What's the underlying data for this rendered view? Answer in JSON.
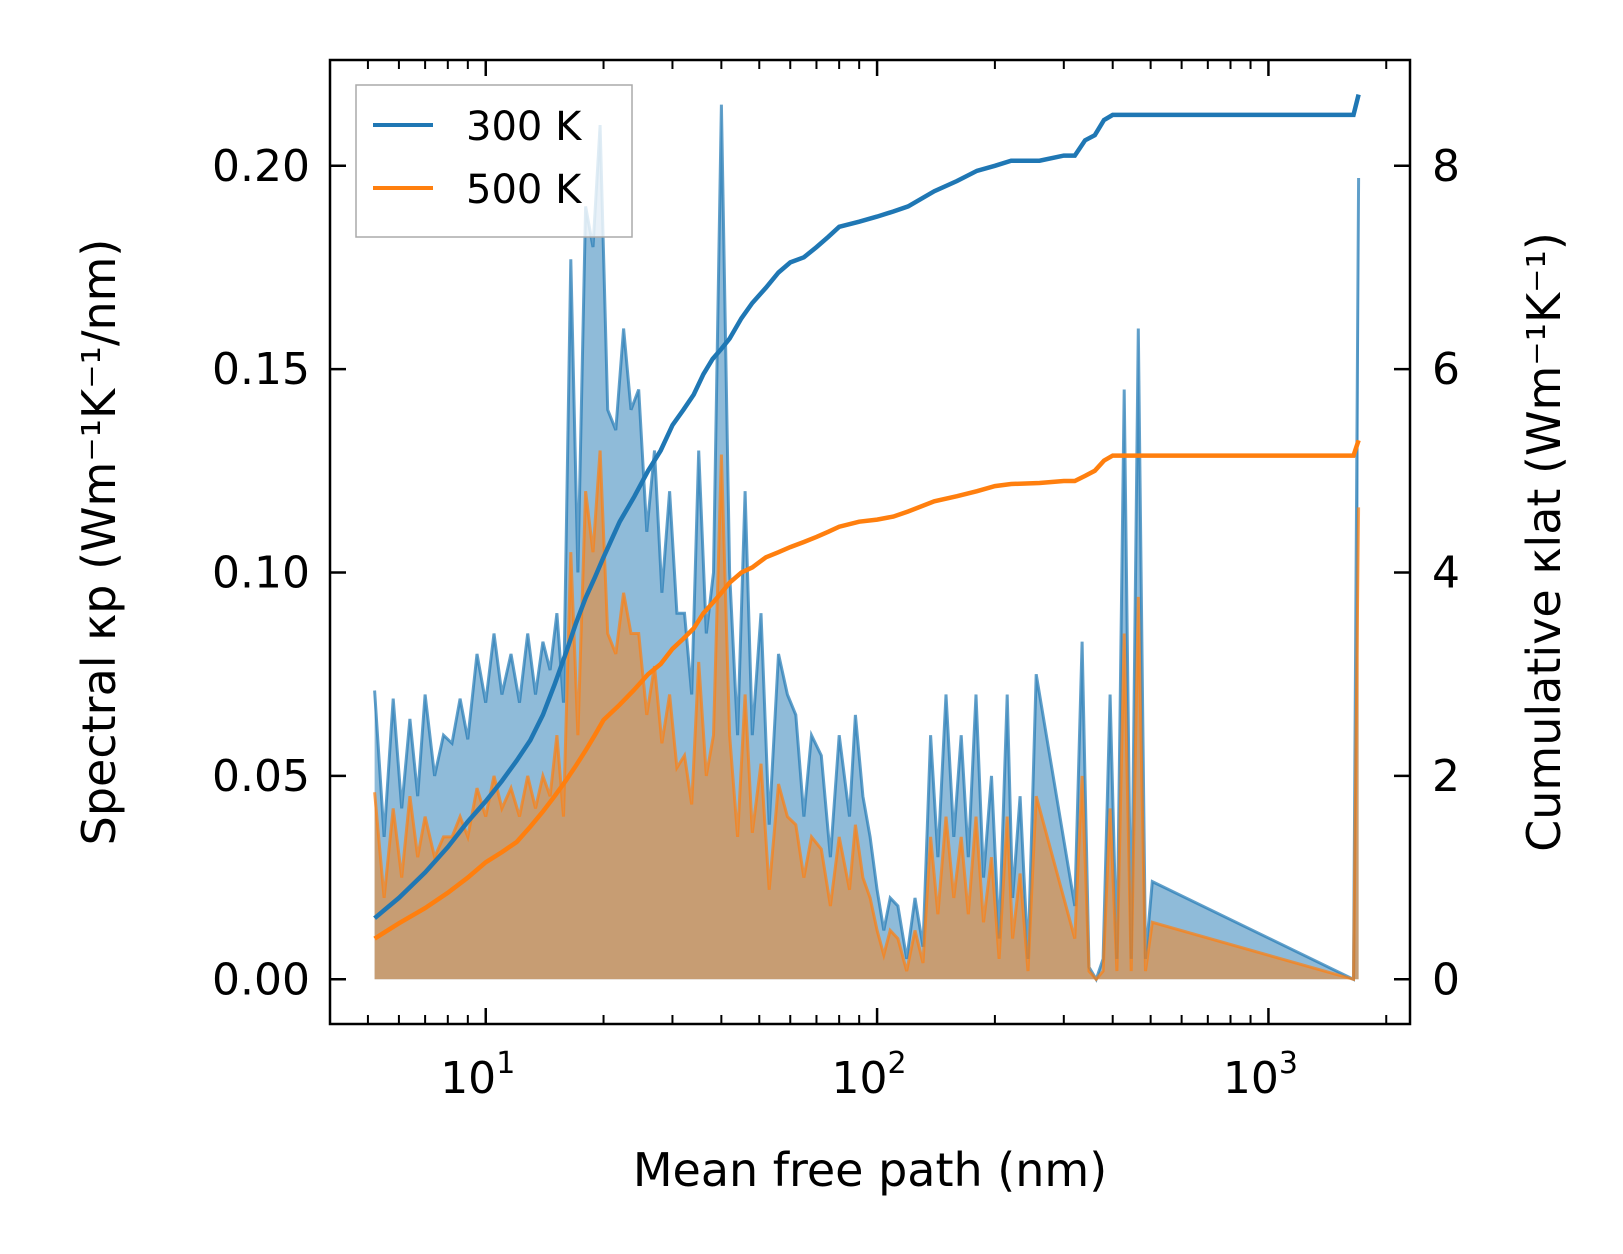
{
  "chart_data": {
    "type": "line",
    "title": "",
    "xlabel": "Mean free path (nm)",
    "ylabel": "Spectral κp (Wm⁻¹K⁻¹/nm)",
    "y2label": "Cumulative κlat (Wm⁻¹K⁻¹)",
    "xscale": "log",
    "xlim": [
      4,
      2300
    ],
    "ylim": [
      -0.011,
      0.226
    ],
    "y2lim": [
      -0.44,
      9.04
    ],
    "x_ticks": [
      {
        "value": 10,
        "base": "10",
        "exp": "1"
      },
      {
        "value": 100,
        "base": "10",
        "exp": "2"
      },
      {
        "value": 1000,
        "base": "10",
        "exp": "3"
      }
    ],
    "y_ticks": [
      {
        "value": 0.0,
        "label": "0.00"
      },
      {
        "value": 0.05,
        "label": "0.05"
      },
      {
        "value": 0.1,
        "label": "0.10"
      },
      {
        "value": 0.15,
        "label": "0.15"
      },
      {
        "value": 0.2,
        "label": "0.20"
      }
    ],
    "y2_ticks": [
      {
        "value": 0,
        "label": "0"
      },
      {
        "value": 2,
        "label": "2"
      },
      {
        "value": 4,
        "label": "4"
      },
      {
        "value": 6,
        "label": "6"
      },
      {
        "value": 8,
        "label": "8"
      }
    ],
    "legend": {
      "location": "upper-left",
      "entries": [
        {
          "label": "300 K",
          "color": "#1f77b4"
        },
        {
          "label": "500 K",
          "color": "#ff7f0e"
        }
      ]
    },
    "spectral_series": [
      {
        "name": "300 K",
        "color": "#1f77b4",
        "x": [
          5.2,
          5.5,
          5.8,
          6.1,
          6.4,
          6.7,
          7.0,
          7.4,
          7.8,
          8.2,
          8.6,
          9.0,
          9.5,
          10.0,
          10.5,
          11.0,
          11.6,
          12.2,
          12.8,
          13.4,
          14.0,
          14.6,
          15.2,
          15.8,
          16.5,
          17.2,
          18.0,
          18.8,
          19.6,
          20.5,
          21.5,
          22.5,
          23.5,
          24.6,
          25.8,
          27.0,
          28.2,
          29.5,
          30.8,
          32.2,
          33.6,
          35.0,
          36.6,
          38.2,
          40.0,
          42.0,
          44.0,
          46.0,
          48.0,
          50.5,
          53.0,
          56.0,
          59.0,
          62.0,
          65.0,
          68.0,
          72.0,
          76.0,
          80.0,
          85.0,
          88.0,
          92.0,
          96.0,
          100.0,
          104.0,
          108.0,
          113.0,
          119.0,
          125.0,
          131.0,
          137.0,
          143.0,
          150.0,
          157.0,
          164.0,
          171.0,
          179.0,
          187.0,
          196.0,
          205.0,
          215.0,
          222.0,
          232.0,
          243.0,
          255.0,
          320.0,
          334.0,
          348.0,
          363.0,
          378.0,
          394.0,
          410.0,
          428.0,
          446.0,
          465.0,
          485.0,
          505.0,
          1650.0,
          1700.0
        ],
        "values": [
          0.071,
          0.035,
          0.069,
          0.042,
          0.064,
          0.045,
          0.07,
          0.05,
          0.06,
          0.058,
          0.069,
          0.059,
          0.08,
          0.068,
          0.085,
          0.07,
          0.08,
          0.068,
          0.085,
          0.07,
          0.083,
          0.076,
          0.09,
          0.068,
          0.177,
          0.1,
          0.19,
          0.18,
          0.21,
          0.14,
          0.135,
          0.16,
          0.14,
          0.145,
          0.11,
          0.13,
          0.095,
          0.12,
          0.09,
          0.09,
          0.07,
          0.13,
          0.085,
          0.1,
          0.215,
          0.1,
          0.06,
          0.12,
          0.06,
          0.09,
          0.038,
          0.08,
          0.07,
          0.065,
          0.04,
          0.06,
          0.055,
          0.03,
          0.06,
          0.04,
          0.065,
          0.045,
          0.035,
          0.022,
          0.012,
          0.02,
          0.018,
          0.005,
          0.02,
          0.008,
          0.06,
          0.03,
          0.07,
          0.035,
          0.06,
          0.03,
          0.07,
          0.025,
          0.05,
          0.01,
          0.07,
          0.02,
          0.045,
          0.005,
          0.075,
          0.018,
          0.083,
          0.003,
          0.0,
          0.005,
          0.07,
          0.005,
          0.145,
          0.005,
          0.16,
          0.005,
          0.024,
          0.0,
          0.197
        ],
        "fill_opacity": 0.5
      },
      {
        "name": "500 K",
        "color": "#ff7f0e",
        "x": [
          5.2,
          5.5,
          5.8,
          6.1,
          6.4,
          6.7,
          7.0,
          7.4,
          7.8,
          8.2,
          8.6,
          9.0,
          9.5,
          10.0,
          10.5,
          11.0,
          11.6,
          12.2,
          12.8,
          13.4,
          14.0,
          14.6,
          15.2,
          15.8,
          16.5,
          17.2,
          18.0,
          18.8,
          19.6,
          20.5,
          21.5,
          22.5,
          23.5,
          24.6,
          25.8,
          27.0,
          28.2,
          29.5,
          30.8,
          32.2,
          33.6,
          35.0,
          36.6,
          38.2,
          40.0,
          42.0,
          44.0,
          46.0,
          48.0,
          50.5,
          53.0,
          56.0,
          59.0,
          62.0,
          65.0,
          68.0,
          72.0,
          76.0,
          80.0,
          85.0,
          88.0,
          92.0,
          96.0,
          100.0,
          104.0,
          108.0,
          113.0,
          119.0,
          125.0,
          131.0,
          137.0,
          143.0,
          150.0,
          157.0,
          164.0,
          171.0,
          179.0,
          187.0,
          196.0,
          205.0,
          215.0,
          222.0,
          232.0,
          243.0,
          255.0,
          320.0,
          334.0,
          348.0,
          363.0,
          378.0,
          394.0,
          410.0,
          428.0,
          446.0,
          465.0,
          485.0,
          505.0,
          1650.0,
          1700.0
        ],
        "values": [
          0.046,
          0.02,
          0.042,
          0.025,
          0.045,
          0.03,
          0.04,
          0.03,
          0.035,
          0.035,
          0.04,
          0.035,
          0.047,
          0.04,
          0.05,
          0.042,
          0.047,
          0.04,
          0.05,
          0.042,
          0.05,
          0.045,
          0.06,
          0.04,
          0.105,
          0.06,
          0.12,
          0.105,
          0.13,
          0.085,
          0.08,
          0.095,
          0.085,
          0.085,
          0.065,
          0.077,
          0.058,
          0.07,
          0.052,
          0.055,
          0.043,
          0.078,
          0.05,
          0.06,
          0.129,
          0.06,
          0.035,
          0.07,
          0.036,
          0.053,
          0.022,
          0.048,
          0.04,
          0.038,
          0.025,
          0.035,
          0.032,
          0.018,
          0.035,
          0.022,
          0.038,
          0.025,
          0.02,
          0.012,
          0.006,
          0.012,
          0.01,
          0.002,
          0.012,
          0.004,
          0.035,
          0.016,
          0.04,
          0.02,
          0.035,
          0.016,
          0.04,
          0.014,
          0.03,
          0.005,
          0.04,
          0.01,
          0.026,
          0.002,
          0.045,
          0.01,
          0.05,
          0.002,
          0.0,
          0.002,
          0.042,
          0.002,
          0.085,
          0.002,
          0.094,
          0.002,
          0.014,
          0.0,
          0.116
        ],
        "fill_opacity": 0.5
      }
    ],
    "cumulative_series": [
      {
        "name": "300 K",
        "color": "#1f77b4",
        "x": [
          5.2,
          6,
          7,
          8,
          9,
          10,
          11,
          12,
          13,
          14,
          15,
          16,
          17,
          18,
          19,
          20,
          22,
          24,
          26,
          28,
          30,
          32,
          34,
          36,
          38,
          40,
          42,
          45,
          48,
          52,
          56,
          60,
          65,
          70,
          75,
          80,
          90,
          100,
          110,
          120,
          140,
          160,
          180,
          200,
          220,
          260,
          300,
          320,
          340,
          360,
          380,
          400,
          450,
          500,
          1650,
          1700
        ],
        "values": [
          0.6,
          0.8,
          1.05,
          1.3,
          1.55,
          1.75,
          1.95,
          2.15,
          2.35,
          2.6,
          2.9,
          3.2,
          3.5,
          3.75,
          3.95,
          4.15,
          4.5,
          4.75,
          5.0,
          5.2,
          5.45,
          5.6,
          5.75,
          5.95,
          6.1,
          6.2,
          6.3,
          6.5,
          6.65,
          6.8,
          6.95,
          7.05,
          7.1,
          7.2,
          7.3,
          7.4,
          7.45,
          7.5,
          7.55,
          7.6,
          7.75,
          7.85,
          7.95,
          8.0,
          8.05,
          8.05,
          8.1,
          8.1,
          8.25,
          8.3,
          8.45,
          8.5,
          8.5,
          8.5,
          8.5,
          8.7
        ]
      },
      {
        "name": "500 K",
        "color": "#ff7f0e",
        "x": [
          5.2,
          6,
          7,
          8,
          9,
          10,
          11,
          12,
          13,
          14,
          15,
          16,
          17,
          18,
          19,
          20,
          22,
          24,
          26,
          28,
          30,
          32,
          34,
          36,
          38,
          40,
          42,
          45,
          48,
          52,
          56,
          60,
          65,
          70,
          75,
          80,
          90,
          100,
          110,
          120,
          140,
          160,
          180,
          200,
          220,
          260,
          300,
          320,
          340,
          360,
          380,
          400,
          450,
          500,
          1650,
          1700
        ],
        "values": [
          0.4,
          0.55,
          0.7,
          0.85,
          1.0,
          1.15,
          1.25,
          1.35,
          1.5,
          1.65,
          1.8,
          1.95,
          2.1,
          2.25,
          2.4,
          2.55,
          2.7,
          2.85,
          3.0,
          3.1,
          3.25,
          3.35,
          3.45,
          3.6,
          3.7,
          3.8,
          3.9,
          4.0,
          4.05,
          4.15,
          4.2,
          4.25,
          4.3,
          4.35,
          4.4,
          4.45,
          4.5,
          4.52,
          4.55,
          4.6,
          4.7,
          4.75,
          4.8,
          4.85,
          4.87,
          4.88,
          4.9,
          4.9,
          4.95,
          5.0,
          5.1,
          5.15,
          5.15,
          5.15,
          5.15,
          5.3
        ]
      }
    ]
  }
}
